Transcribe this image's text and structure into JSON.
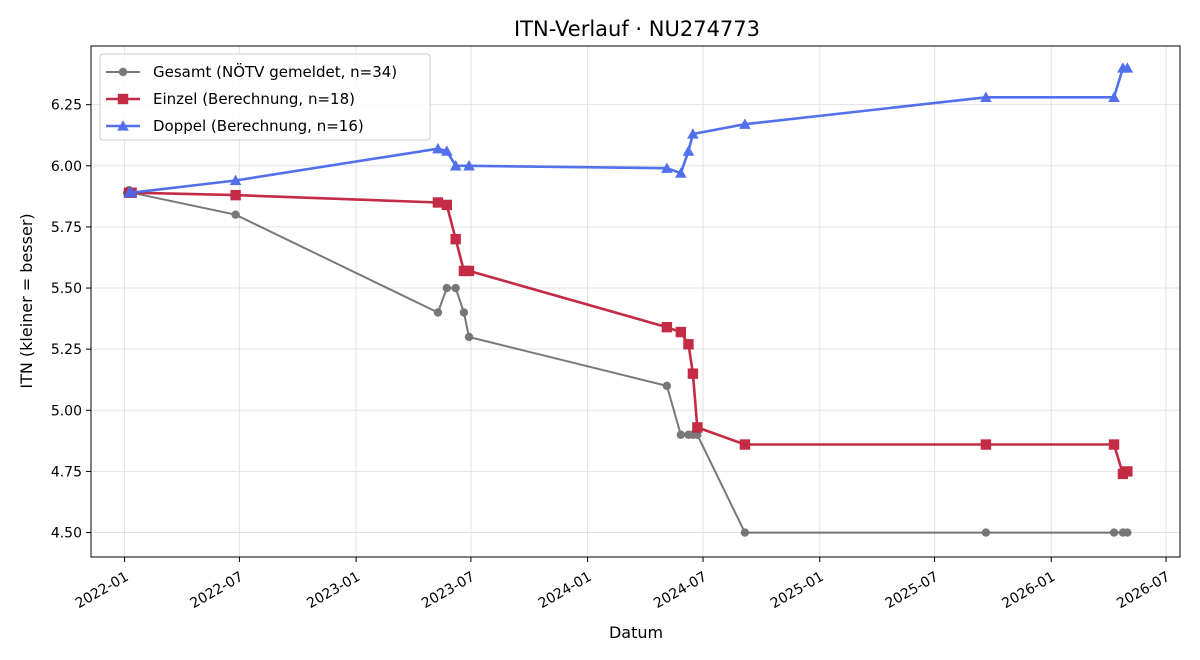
{
  "chart_data": {
    "type": "line",
    "title": "ITN-Verlauf · NU274773",
    "xlabel": "Datum",
    "ylabel": "ITN  (kleiner = besser)",
    "xlim": [
      "2021-11-09",
      "2026-07-23"
    ],
    "ylim": [
      4.4,
      6.49
    ],
    "x_ticks": [
      "2022-01",
      "2022-07",
      "2023-01",
      "2023-07",
      "2024-01",
      "2024-07",
      "2025-01",
      "2025-07",
      "2026-01",
      "2026-07"
    ],
    "y_ticks": [
      "4.50",
      "4.75",
      "5.00",
      "5.25",
      "5.50",
      "5.75",
      "6.00",
      "6.25"
    ],
    "grid": true,
    "legend_position": "top-left",
    "series": [
      {
        "name": "Gesamt (NÖTV gemeldet, n=34)",
        "color": "#404040",
        "marker": "circle",
        "points": [
          [
            "2022-01-05",
            5.89
          ],
          [
            "2022-01-08",
            5.9
          ],
          [
            "2022-01-12",
            5.89
          ],
          [
            "2022-06-25",
            5.8
          ],
          [
            "2023-05-10",
            5.4
          ],
          [
            "2023-05-24",
            5.5
          ],
          [
            "2023-06-07",
            5.5
          ],
          [
            "2023-06-20",
            5.4
          ],
          [
            "2023-06-28",
            5.3
          ],
          [
            "2024-05-05",
            5.1
          ],
          [
            "2024-05-27",
            4.9
          ],
          [
            "2024-06-08",
            4.9
          ],
          [
            "2024-06-15",
            4.9
          ],
          [
            "2024-06-22",
            4.9
          ],
          [
            "2024-09-05",
            4.5
          ],
          [
            "2025-09-20",
            4.5
          ],
          [
            "2026-04-10",
            4.5
          ],
          [
            "2026-04-24",
            4.5
          ],
          [
            "2026-05-01",
            4.5
          ]
        ]
      },
      {
        "name": "Einzel (Berechnung, n=18)",
        "color": "#c1203c",
        "marker": "square",
        "points": [
          [
            "2022-01-08",
            5.89
          ],
          [
            "2022-01-12",
            5.89
          ],
          [
            "2022-06-25",
            5.88
          ],
          [
            "2023-05-10",
            5.85
          ],
          [
            "2023-05-24",
            5.84
          ],
          [
            "2023-06-07",
            5.7
          ],
          [
            "2023-06-20",
            5.57
          ],
          [
            "2023-06-28",
            5.57
          ],
          [
            "2024-05-05",
            5.34
          ],
          [
            "2024-05-27",
            5.32
          ],
          [
            "2024-06-08",
            5.27
          ],
          [
            "2024-06-15",
            5.15
          ],
          [
            "2024-06-22",
            4.93
          ],
          [
            "2024-09-05",
            4.86
          ],
          [
            "2025-09-20",
            4.86
          ],
          [
            "2026-04-10",
            4.86
          ],
          [
            "2026-04-24",
            4.74
          ],
          [
            "2026-05-01",
            4.75
          ]
        ]
      },
      {
        "name": "Doppel (Berechnung, n=16)",
        "color": "#4a69eb",
        "marker": "triangle",
        "points": [
          [
            "2022-01-08",
            5.89
          ],
          [
            "2022-01-12",
            5.89
          ],
          [
            "2022-06-25",
            5.94
          ],
          [
            "2023-05-10",
            6.07
          ],
          [
            "2023-05-24",
            6.06
          ],
          [
            "2023-06-07",
            6.0
          ],
          [
            "2023-06-28",
            6.0
          ],
          [
            "2024-05-05",
            5.99
          ],
          [
            "2024-05-27",
            5.97
          ],
          [
            "2024-06-08",
            6.06
          ],
          [
            "2024-06-15",
            6.13
          ],
          [
            "2024-09-05",
            6.17
          ],
          [
            "2025-09-20",
            6.28
          ],
          [
            "2026-04-10",
            6.28
          ],
          [
            "2026-04-24",
            6.4
          ],
          [
            "2026-05-01",
            6.4
          ]
        ]
      }
    ]
  }
}
